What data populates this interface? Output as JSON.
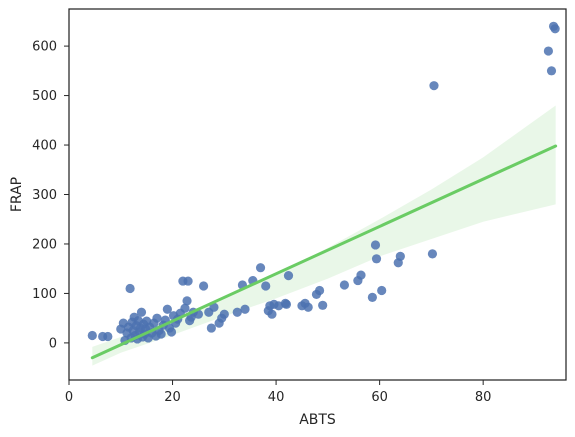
{
  "chart_data": {
    "type": "scatter",
    "title": "",
    "xlabel": "ABTS",
    "ylabel": "FRAP",
    "xlim": [
      0,
      96
    ],
    "ylim": [
      -75,
      675
    ],
    "xticks": [
      0,
      20,
      40,
      60,
      80
    ],
    "yticks": [
      0,
      100,
      200,
      300,
      400,
      500,
      600
    ],
    "grid": false,
    "legend": "none",
    "colors": {
      "points": "#4c72b0",
      "regression_line": "#6acc64",
      "confidence_band": "#6acc64",
      "axes": "#262626"
    },
    "regression": {
      "x": [
        4.5,
        94.0
      ],
      "y": [
        -30,
        398
      ],
      "band_x": [
        4.5,
        10,
        20,
        30,
        40,
        50,
        60,
        70,
        80,
        94
      ],
      "band_upper": [
        -8,
        12,
        48,
        92,
        140,
        192,
        250,
        310,
        375,
        480
      ],
      "band_lower": [
        -46,
        -20,
        16,
        54,
        90,
        130,
        175,
        210,
        245,
        280
      ]
    },
    "points": [
      {
        "x": 4.5,
        "y": 15
      },
      {
        "x": 6.5,
        "y": 13
      },
      {
        "x": 7.5,
        "y": 13
      },
      {
        "x": 10.0,
        "y": 28
      },
      {
        "x": 10.5,
        "y": 40
      },
      {
        "x": 10.8,
        "y": 5
      },
      {
        "x": 11.2,
        "y": 20
      },
      {
        "x": 11.5,
        "y": 32
      },
      {
        "x": 11.8,
        "y": 110
      },
      {
        "x": 12.0,
        "y": 10
      },
      {
        "x": 12.2,
        "y": 42
      },
      {
        "x": 12.4,
        "y": 25
      },
      {
        "x": 12.6,
        "y": 52
      },
      {
        "x": 12.8,
        "y": 15
      },
      {
        "x": 13.0,
        "y": 35
      },
      {
        "x": 13.2,
        "y": 8
      },
      {
        "x": 13.4,
        "y": 45
      },
      {
        "x": 13.6,
        "y": 22
      },
      {
        "x": 13.8,
        "y": 30
      },
      {
        "x": 14.0,
        "y": 62
      },
      {
        "x": 14.2,
        "y": 12
      },
      {
        "x": 14.4,
        "y": 38
      },
      {
        "x": 14.6,
        "y": 18
      },
      {
        "x": 14.8,
        "y": 28
      },
      {
        "x": 15.0,
        "y": 44
      },
      {
        "x": 15.3,
        "y": 10
      },
      {
        "x": 15.6,
        "y": 32
      },
      {
        "x": 16.0,
        "y": 20
      },
      {
        "x": 16.4,
        "y": 40
      },
      {
        "x": 16.8,
        "y": 14
      },
      {
        "x": 17.0,
        "y": 50
      },
      {
        "x": 17.4,
        "y": 25
      },
      {
        "x": 17.8,
        "y": 18
      },
      {
        "x": 18.2,
        "y": 36
      },
      {
        "x": 18.6,
        "y": 46
      },
      {
        "x": 19.0,
        "y": 68
      },
      {
        "x": 19.4,
        "y": 30
      },
      {
        "x": 19.8,
        "y": 22
      },
      {
        "x": 20.2,
        "y": 55
      },
      {
        "x": 20.6,
        "y": 40
      },
      {
        "x": 21.0,
        "y": 48
      },
      {
        "x": 21.5,
        "y": 60
      },
      {
        "x": 22.0,
        "y": 125
      },
      {
        "x": 22.4,
        "y": 70
      },
      {
        "x": 22.8,
        "y": 85
      },
      {
        "x": 23.0,
        "y": 125
      },
      {
        "x": 23.3,
        "y": 45
      },
      {
        "x": 23.6,
        "y": 52
      },
      {
        "x": 24.0,
        "y": 62
      },
      {
        "x": 25.0,
        "y": 58
      },
      {
        "x": 26.0,
        "y": 115
      },
      {
        "x": 27.0,
        "y": 62
      },
      {
        "x": 27.5,
        "y": 30
      },
      {
        "x": 28.0,
        "y": 72
      },
      {
        "x": 29.0,
        "y": 40
      },
      {
        "x": 29.5,
        "y": 50
      },
      {
        "x": 30.0,
        "y": 58
      },
      {
        "x": 32.5,
        "y": 62
      },
      {
        "x": 33.5,
        "y": 117
      },
      {
        "x": 34.0,
        "y": 68
      },
      {
        "x": 35.5,
        "y": 126
      },
      {
        "x": 37.0,
        "y": 152
      },
      {
        "x": 38.0,
        "y": 115
      },
      {
        "x": 38.5,
        "y": 65
      },
      {
        "x": 38.8,
        "y": 75
      },
      {
        "x": 39.2,
        "y": 58
      },
      {
        "x": 39.6,
        "y": 78
      },
      {
        "x": 40.5,
        "y": 75
      },
      {
        "x": 41.8,
        "y": 80
      },
      {
        "x": 42.4,
        "y": 136
      },
      {
        "x": 42.0,
        "y": 78
      },
      {
        "x": 45.0,
        "y": 75
      },
      {
        "x": 45.6,
        "y": 80
      },
      {
        "x": 46.2,
        "y": 72
      },
      {
        "x": 47.8,
        "y": 98
      },
      {
        "x": 48.4,
        "y": 106
      },
      {
        "x": 49.0,
        "y": 76
      },
      {
        "x": 53.2,
        "y": 117
      },
      {
        "x": 55.8,
        "y": 126
      },
      {
        "x": 56.4,
        "y": 137
      },
      {
        "x": 58.6,
        "y": 92
      },
      {
        "x": 59.2,
        "y": 198
      },
      {
        "x": 59.4,
        "y": 170
      },
      {
        "x": 60.4,
        "y": 106
      },
      {
        "x": 63.6,
        "y": 162
      },
      {
        "x": 64.0,
        "y": 175
      },
      {
        "x": 70.2,
        "y": 180
      },
      {
        "x": 70.5,
        "y": 520
      },
      {
        "x": 92.6,
        "y": 590
      },
      {
        "x": 93.2,
        "y": 550
      },
      {
        "x": 93.6,
        "y": 640
      },
      {
        "x": 93.9,
        "y": 635
      }
    ]
  }
}
